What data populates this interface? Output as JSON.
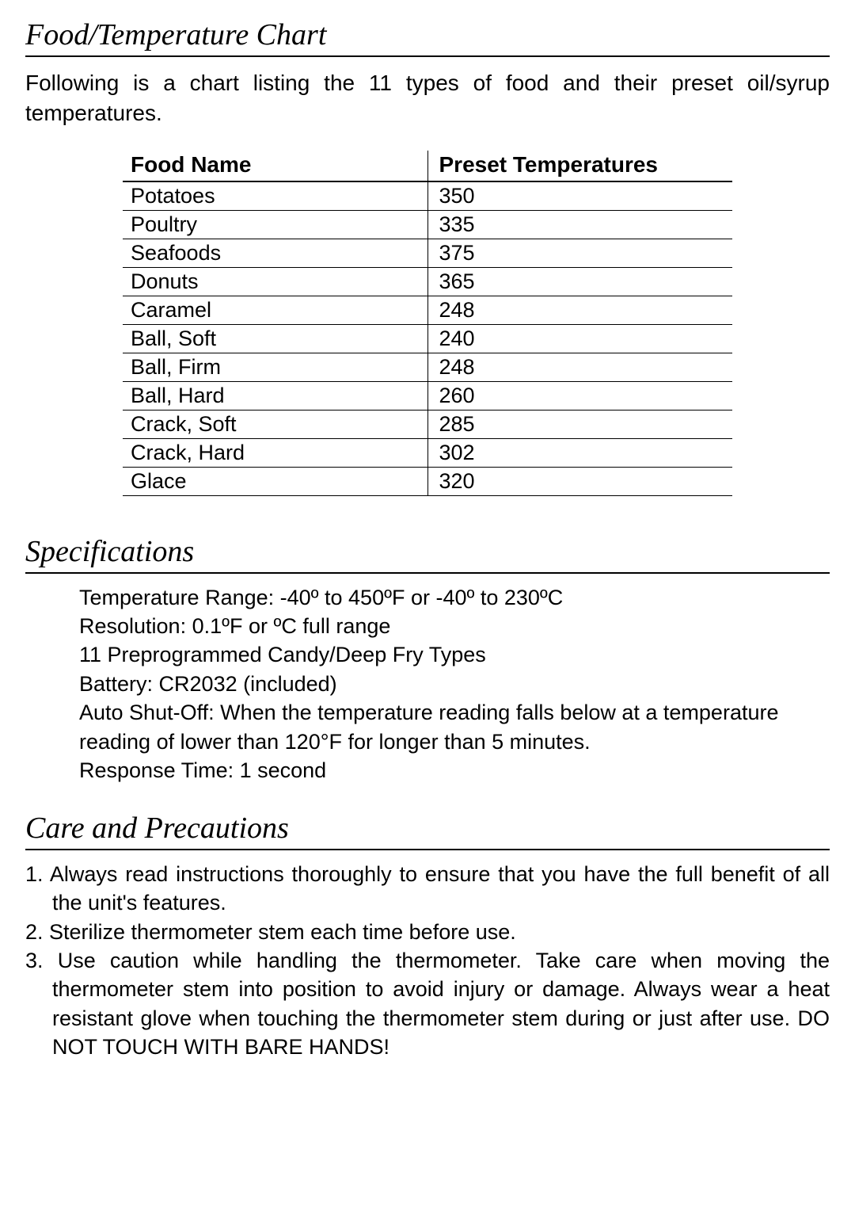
{
  "sections": {
    "chart": {
      "heading": "Food/Temperature Chart",
      "intro": "Following is a chart listing the 11 types of food and their preset oil/syrup temperatures."
    },
    "specs": {
      "heading": "Specifications",
      "lines": [
        "Temperature Range: -40º to 450ºF or -40º to 230ºC",
        "Resolution: 0.1ºF or ºC full range",
        "11 Preprogrammed Candy/Deep Fry Types",
        "Battery: CR2032 (included)",
        "Auto Shut-Off: When the temperature reading falls below at a temperature reading of lower than 120°F for longer than 5 minutes.",
        "Response Time: 1 second"
      ]
    },
    "care": {
      "heading": "Care and Precautions",
      "items": [
        "Always read instructions thoroughly to ensure that you have the full benefit of all the unit's features.",
        "Sterilize thermometer stem each time before use.",
        "Use caution while handling the thermometer. Take care when moving the thermometer stem into position to avoid injury or damage. Always wear a heat resistant glove when touching the thermometer stem during or just after use. DO NOT TOUCH WITH BARE HANDS!"
      ]
    }
  },
  "table": {
    "columns": [
      "Food Name",
      "Preset Temperatures"
    ],
    "rows": [
      [
        "Potatoes",
        "350"
      ],
      [
        "Poultry",
        "335"
      ],
      [
        "Seafoods",
        "375"
      ],
      [
        "Donuts",
        "365"
      ],
      [
        "Caramel",
        "248"
      ],
      [
        "Ball, Soft",
        "240"
      ],
      [
        "Ball, Firm",
        "248"
      ],
      [
        "Ball, Hard",
        "260"
      ],
      [
        "Crack, Soft",
        "285"
      ],
      [
        "Crack, Hard",
        "302"
      ],
      [
        "Glace",
        "320"
      ]
    ],
    "header_fontsize": 28,
    "cell_fontsize": 27,
    "border_color": "#000000",
    "column_widths": [
      "50%",
      "50%"
    ]
  },
  "styling": {
    "heading_font": "Garamond serif italic",
    "heading_fontsize": 38,
    "body_font": "Arial sans-serif",
    "body_fontsize": 27,
    "text_color": "#000000",
    "background_color": "#ffffff"
  }
}
